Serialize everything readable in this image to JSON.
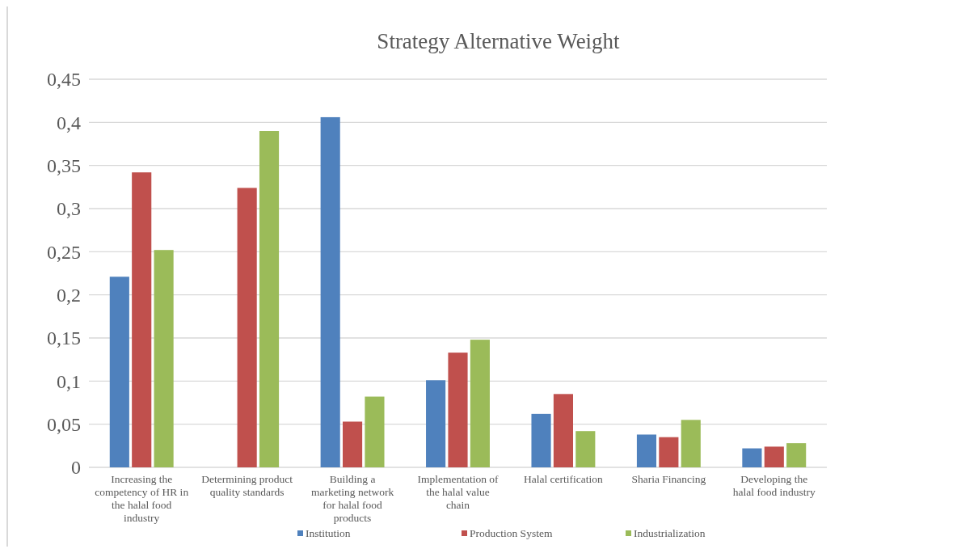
{
  "chart_data": {
    "type": "bar",
    "title": "Strategy Alternative Weight",
    "categories": [
      "Increasing the competency of HR in the halal food industry",
      "Determining product quality standards",
      "Building a marketing network for halal food products",
      "Implementation of the halal value chain",
      "Halal certification",
      "Sharia Financing",
      "Developing the halal food industry"
    ],
    "series": [
      {
        "name": "Institution",
        "color": "#4f81bd",
        "values": [
          0.221,
          0,
          0.406,
          0.101,
          0.062,
          0.038,
          0.022
        ]
      },
      {
        "name": "Production System",
        "color": "#c0504d",
        "values": [
          0.342,
          0.324,
          0.053,
          0.133,
          0.085,
          0.035,
          0.024
        ]
      },
      {
        "name": "Industrialization",
        "color": "#9bbb59",
        "values": [
          0.252,
          0.39,
          0.082,
          0.148,
          0.042,
          0.055,
          0.028
        ]
      }
    ],
    "ylim": [
      0,
      0.45
    ],
    "yticks": [
      {
        "value": 0,
        "label": "0"
      },
      {
        "value": 0.05,
        "label": "0,05"
      },
      {
        "value": 0.1,
        "label": "0,1"
      },
      {
        "value": 0.15,
        "label": "0,15"
      },
      {
        "value": 0.2,
        "label": "0,2"
      },
      {
        "value": 0.25,
        "label": "0,25"
      },
      {
        "value": 0.3,
        "label": "0,3"
      },
      {
        "value": 0.35,
        "label": "0,35"
      },
      {
        "value": 0.4,
        "label": "0,4"
      },
      {
        "value": 0.45,
        "label": "0,45"
      }
    ],
    "grid": "y",
    "legend": "bottom"
  }
}
